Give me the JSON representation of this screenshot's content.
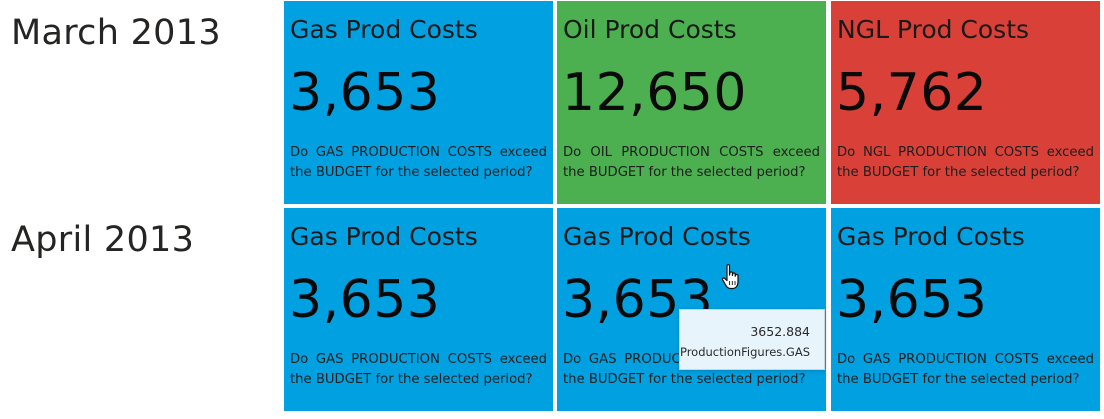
{
  "rows": [
    {
      "label": "March 2013"
    },
    {
      "label": "April 2013"
    }
  ],
  "tiles": [
    {
      "title": "Gas Prod Costs",
      "value": "3,653",
      "description": "Do GAS PRODUCTION COSTS exceed the BUDGET for the selected period?",
      "color": "#01a0e1"
    },
    {
      "title": "Oil Prod Costs",
      "value": "12,650",
      "description": "Do OIL PRODUCTION COSTS exceed the BUDGET for the selected period?",
      "color": "#4caf50"
    },
    {
      "title": "NGL Prod Costs",
      "value": "5,762",
      "description": "Do NGL PRODUCTION COSTS exceed the BUDGET for the selected period?",
      "color": "#d84038"
    },
    {
      "title": "Gas Prod Costs",
      "value": "3,653",
      "description": "Do GAS PRODUCTION COSTS exceed the BUDGET for the selected period?",
      "color": "#01a0e1"
    },
    {
      "title": "Gas Prod Costs",
      "value": "3,653",
      "description": "Do GAS PRODUCTION COSTS exceed the BUDGET for the selected period?",
      "color": "#01a0e1"
    },
    {
      "title": "Gas Prod Costs",
      "value": "3,653",
      "description": "Do GAS PRODUCTION COSTS exceed the BUDGET for the selected period?",
      "color": "#01a0e1"
    }
  ],
  "tooltip": {
    "value": "3652.884",
    "field": "ProductionFigures.GAS"
  },
  "cursor": {
    "icon": "hand-pointer-icon"
  }
}
